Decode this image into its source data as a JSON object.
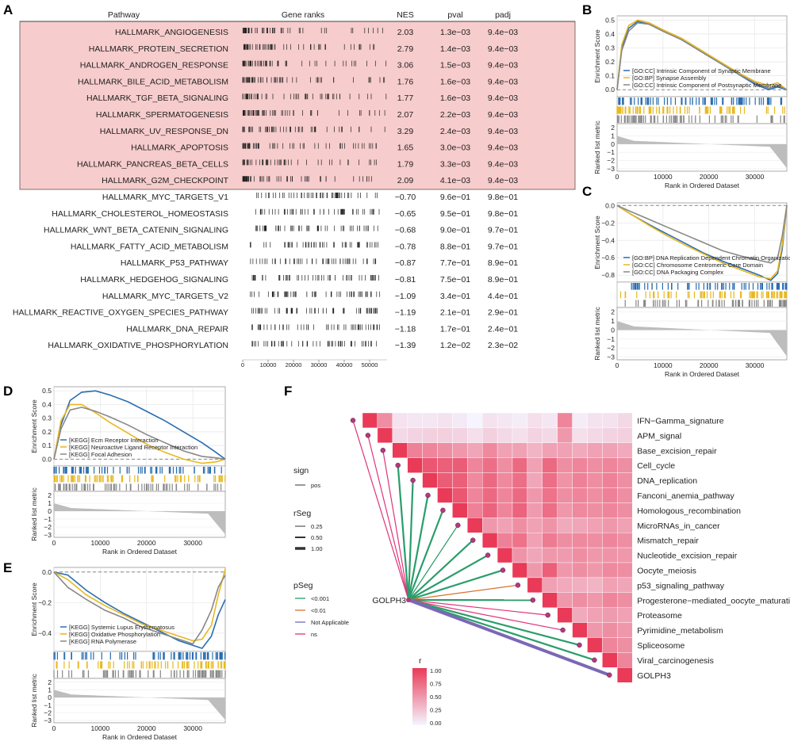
{
  "panels": {
    "a": "A",
    "b": "B",
    "c": "C",
    "d": "D",
    "e": "E",
    "f": "F"
  },
  "table": {
    "headers": [
      "Pathway",
      "Gene ranks",
      "NES",
      "pval",
      "padj"
    ],
    "rows": [
      {
        "pathway": "HALLMARK_ANGIOGENESIS",
        "nes": "2.03",
        "pval": "1.3e−03",
        "padj": "9.4e−03",
        "highlight": true
      },
      {
        "pathway": "HALLMARK_PROTEIN_SECRETION",
        "nes": "2.79",
        "pval": "1.4e−03",
        "padj": "9.4e−03",
        "highlight": true
      },
      {
        "pathway": "HALLMARK_ANDROGEN_RESPONSE",
        "nes": "3.06",
        "pval": "1.5e−03",
        "padj": "9.4e−03",
        "highlight": true
      },
      {
        "pathway": "HALLMARK_BILE_ACID_METABOLISM",
        "nes": "1.76",
        "pval": "1.6e−03",
        "padj": "9.4e−03",
        "highlight": true
      },
      {
        "pathway": "HALLMARK_TGF_BETA_SIGNALING",
        "nes": "1.77",
        "pval": "1.6e−03",
        "padj": "9.4e−03",
        "highlight": true
      },
      {
        "pathway": "HALLMARK_SPERMATOGENESIS",
        "nes": "2.07",
        "pval": "2.2e−03",
        "padj": "9.4e−03",
        "highlight": true
      },
      {
        "pathway": "HALLMARK_UV_RESPONSE_DN",
        "nes": "3.29",
        "pval": "2.4e−03",
        "padj": "9.4e−03",
        "highlight": true
      },
      {
        "pathway": "HALLMARK_APOPTOSIS",
        "nes": "1.65",
        "pval": "3.0e−03",
        "padj": "9.4e−03",
        "highlight": true
      },
      {
        "pathway": "HALLMARK_PANCREAS_BETA_CELLS",
        "nes": "1.79",
        "pval": "3.3e−03",
        "padj": "9.4e−03",
        "highlight": true
      },
      {
        "pathway": "HALLMARK_G2M_CHECKPOINT",
        "nes": "2.09",
        "pval": "4.1e−03",
        "padj": "9.4e−03",
        "highlight": true
      },
      {
        "pathway": "HALLMARK_MYC_TARGETS_V1",
        "nes": "−0.70",
        "pval": "9.6e−01",
        "padj": "9.8e−01",
        "highlight": false
      },
      {
        "pathway": "HALLMARK_CHOLESTEROL_HOMEOSTASIS",
        "nes": "−0.65",
        "pval": "9.5e−01",
        "padj": "9.8e−01",
        "highlight": false
      },
      {
        "pathway": "HALLMARK_WNT_BETA_CATENIN_SIGNALING",
        "nes": "−0.68",
        "pval": "9.0e−01",
        "padj": "9.7e−01",
        "highlight": false
      },
      {
        "pathway": "HALLMARK_FATTY_ACID_METABOLISM",
        "nes": "−0.78",
        "pval": "8.8e−01",
        "padj": "9.7e−01",
        "highlight": false
      },
      {
        "pathway": "HALLMARK_P53_PATHWAY",
        "nes": "−0.87",
        "pval": "7.7e−01",
        "padj": "8.9e−01",
        "highlight": false
      },
      {
        "pathway": "HALLMARK_HEDGEHOG_SIGNALING",
        "nes": "−0.81",
        "pval": "7.5e−01",
        "padj": "8.9e−01",
        "highlight": false
      },
      {
        "pathway": "HALLMARK_MYC_TARGETS_V2",
        "nes": "−1.09",
        "pval": "3.4e−01",
        "padj": "4.4e−01",
        "highlight": false
      },
      {
        "pathway": "HALLMARK_REACTIVE_OXYGEN_SPECIES_PATHWAY",
        "nes": "−1.19",
        "pval": "2.1e−01",
        "padj": "2.9e−01",
        "highlight": false
      },
      {
        "pathway": "HALLMARK_DNA_REPAIR",
        "nes": "−1.18",
        "pval": "1.7e−01",
        "padj": "2.4e−01",
        "highlight": false
      },
      {
        "pathway": "HALLMARK_OXIDATIVE_PHOSPHORYLATION",
        "nes": "−1.39",
        "pval": "1.2e−02",
        "padj": "2.3e−02",
        "highlight": false
      }
    ],
    "rank_ticks": [
      "0",
      "10000",
      "20000",
      "30000",
      "40000",
      "50000"
    ],
    "highlight_color": "#f7cccc"
  },
  "gsea_common": {
    "ylabel": "Enrichment Score",
    "ylabel2": "Ranked list metric",
    "xlabel": "Rank in Ordered Dataset",
    "xticks": [
      "0",
      "10000",
      "20000",
      "30000"
    ]
  },
  "chart_data": [
    {
      "id": "B",
      "type": "line",
      "x_range": [
        0,
        37000
      ],
      "y_range": [
        -0.05,
        0.53
      ],
      "yticks": [
        "0.5",
        "0.4",
        "0.3",
        "0.2",
        "0.1",
        "0.0"
      ],
      "metric_ticks": [
        "2",
        "1",
        "0",
        "−1",
        "−2",
        "−3"
      ],
      "legend": [
        "[GO:CC] Intrinsic Component of Synaptic Membrane",
        "[GO:BP] Synapse Assembly",
        "[GO:CC] Intrinsic Component of Postsynaptic Membrane"
      ],
      "series": [
        {
          "name": "Intrinsic Component of Synaptic Membrane",
          "color": "#2a6db0",
          "x": [
            0,
            1000,
            2500,
            4500,
            7000,
            10000,
            14000,
            18000,
            22000,
            26000,
            30000,
            33000,
            35000,
            37000
          ],
          "y": [
            0,
            0.3,
            0.44,
            0.49,
            0.47,
            0.42,
            0.36,
            0.28,
            0.2,
            0.12,
            0.04,
            0.0,
            0.02,
            0
          ]
        },
        {
          "name": "Synapse Assembly",
          "color": "#e8b820",
          "x": [
            0,
            1000,
            2500,
            4500,
            7000,
            10000,
            14000,
            18000,
            22000,
            26000,
            30000,
            33000,
            35000,
            37000
          ],
          "y": [
            0,
            0.32,
            0.46,
            0.5,
            0.48,
            0.43,
            0.37,
            0.29,
            0.21,
            0.13,
            0.06,
            0.03,
            0.05,
            0
          ]
        },
        {
          "name": "Intrinsic Component of Postsynaptic Membrane",
          "color": "#888888",
          "x": [
            0,
            1000,
            2500,
            4500,
            7000,
            10000,
            14000,
            18000,
            22000,
            26000,
            30000,
            33000,
            35000,
            37000
          ],
          "y": [
            0,
            0.28,
            0.42,
            0.48,
            0.47,
            0.42,
            0.36,
            0.28,
            0.2,
            0.12,
            0.05,
            0.01,
            0.03,
            0
          ]
        }
      ]
    },
    {
      "id": "C",
      "type": "line",
      "x_range": [
        0,
        37000
      ],
      "y_range": [
        -0.88,
        0.03
      ],
      "yticks": [
        "0.0",
        "−0.2",
        "−0.4",
        "−0.6",
        "−0.8"
      ],
      "metric_ticks": [
        "2",
        "1",
        "0",
        "−1",
        "−2",
        "−3"
      ],
      "legend": [
        "[GO:BP] DNA Replication Dependent Chromatin Organization",
        "[GO:CC] Chromosome Centromeric Core Domain",
        "[GO:CC] DNA Packaging Complex"
      ],
      "series": [
        {
          "name": "DNA Replication Dependent Chromatin Organization",
          "color": "#2a6db0",
          "x": [
            0,
            3000,
            7000,
            11000,
            15000,
            19000,
            23000,
            27000,
            31000,
            33500,
            35000,
            36000,
            37000
          ],
          "y": [
            0,
            -0.1,
            -0.22,
            -0.33,
            -0.44,
            -0.55,
            -0.64,
            -0.72,
            -0.8,
            -0.86,
            -0.78,
            -0.5,
            0
          ]
        },
        {
          "name": "Chromosome Centromeric Core Domain",
          "color": "#e8b820",
          "x": [
            0,
            3000,
            7000,
            11000,
            15000,
            19000,
            23000,
            27000,
            31000,
            33500,
            35000,
            36000,
            37000
          ],
          "y": [
            0,
            -0.1,
            -0.23,
            -0.35,
            -0.46,
            -0.56,
            -0.66,
            -0.74,
            -0.82,
            -0.84,
            -0.75,
            -0.45,
            0
          ]
        },
        {
          "name": "DNA Packaging Complex",
          "color": "#888888",
          "x": [
            0,
            3000,
            7000,
            11000,
            15000,
            19000,
            23000,
            27000,
            31000,
            33500,
            35000,
            36000,
            37000
          ],
          "y": [
            0,
            -0.07,
            -0.16,
            -0.25,
            -0.34,
            -0.43,
            -0.52,
            -0.58,
            -0.63,
            -0.66,
            -0.6,
            -0.35,
            0
          ]
        }
      ]
    },
    {
      "id": "D",
      "type": "line",
      "x_range": [
        0,
        37000
      ],
      "y_range": [
        -0.05,
        0.53
      ],
      "yticks": [
        "0.5",
        "0.4",
        "0.3",
        "0.2",
        "0.1",
        "0.0"
      ],
      "metric_ticks": [
        "2",
        "1",
        "0",
        "−1",
        "−2",
        "−3"
      ],
      "legend": [
        "[KEGG] Ecm Receptor Interaction",
        "[KEGG] Neuroactive Ligand Receptor Interaction",
        "[KEGG] Focal Adhesion"
      ],
      "series": [
        {
          "name": "Ecm Receptor Interaction",
          "color": "#2a6db0",
          "x": [
            0,
            1500,
            3500,
            6000,
            9000,
            12000,
            16000,
            20000,
            24000,
            28000,
            32000,
            35000,
            37000
          ],
          "y": [
            0,
            0.25,
            0.43,
            0.49,
            0.5,
            0.47,
            0.42,
            0.35,
            0.28,
            0.2,
            0.12,
            0.05,
            0
          ]
        },
        {
          "name": "Neuroactive Ligand Receptor Interaction",
          "color": "#e8b820",
          "x": [
            0,
            1500,
            3500,
            6000,
            9000,
            12000,
            16000,
            20000,
            24000,
            28000,
            32000,
            35000,
            37000
          ],
          "y": [
            0,
            0.28,
            0.4,
            0.4,
            0.34,
            0.27,
            0.19,
            0.11,
            0.05,
            0.0,
            -0.03,
            -0.02,
            0
          ]
        },
        {
          "name": "Focal Adhesion",
          "color": "#888888",
          "x": [
            0,
            1500,
            3500,
            6000,
            9000,
            12000,
            16000,
            20000,
            24000,
            28000,
            32000,
            35000,
            37000
          ],
          "y": [
            0,
            0.22,
            0.36,
            0.38,
            0.35,
            0.31,
            0.25,
            0.18,
            0.12,
            0.06,
            0.02,
            0.01,
            0
          ]
        }
      ]
    },
    {
      "id": "E",
      "type": "line",
      "x_range": [
        0,
        37000
      ],
      "y_range": [
        -0.52,
        0.03
      ],
      "yticks": [
        "0.0",
        "−0.2",
        "−0.4"
      ],
      "metric_ticks": [
        "2",
        "1",
        "0",
        "−1",
        "−2",
        "−3"
      ],
      "legend": [
        "[KEGG] Systemic Lupus Erythematosus",
        "[KEGG] Oxidative Phosphorylation",
        "[KEGG] RNA Polymerase"
      ],
      "series": [
        {
          "name": "Systemic Lupus Erythematosus",
          "color": "#2a6db0",
          "x": [
            0,
            3000,
            7000,
            11000,
            15000,
            19000,
            23000,
            27000,
            30000,
            32000,
            34000,
            35500,
            37000
          ],
          "y": [
            0,
            -0.02,
            -0.12,
            -0.2,
            -0.27,
            -0.33,
            -0.39,
            -0.45,
            -0.48,
            -0.5,
            -0.42,
            -0.28,
            -0.18
          ]
        },
        {
          "name": "Oxidative Phosphorylation",
          "color": "#e8b820",
          "x": [
            0,
            3000,
            7000,
            11000,
            15000,
            19000,
            23000,
            27000,
            30000,
            32000,
            34000,
            35500,
            37000
          ],
          "y": [
            0,
            -0.05,
            -0.15,
            -0.22,
            -0.28,
            -0.34,
            -0.38,
            -0.42,
            -0.45,
            -0.44,
            -0.35,
            -0.15,
            0.02
          ]
        },
        {
          "name": "RNA Polymerase",
          "color": "#888888",
          "x": [
            0,
            3000,
            7000,
            11000,
            15000,
            19000,
            23000,
            27000,
            30000,
            32000,
            34000,
            35500,
            37000
          ],
          "y": [
            0,
            -0.1,
            -0.18,
            -0.25,
            -0.3,
            -0.36,
            -0.4,
            -0.44,
            -0.47,
            -0.38,
            -0.25,
            -0.1,
            -0.02
          ]
        }
      ]
    },
    {
      "id": "F",
      "type": "heatmap",
      "labels": [
        "IFN−Gamma_signature",
        "APM_signal",
        "Base_excision_repair",
        "Cell_cycle",
        "DNA_replication",
        "Fanconi_anemia_pathway",
        "Homologous_recombination",
        "MicroRNAs_in_cancer",
        "Mismatch_repair",
        "Nucleotide_excision_repair",
        "Oocyte_meiosis",
        "p53_signaling_pathway",
        "Progesterone−mediated_oocyte_maturation",
        "Proteasome",
        "Pyrimidine_metabolism",
        "Spliceosome",
        "Viral_carcinogenesis",
        "GOLPH3"
      ],
      "root_label": "GOLPH3",
      "link_pseg": [
        "ns",
        "ns",
        "ns",
        "<0.001",
        "<0.001",
        "<0.001",
        "<0.001",
        "<0.001",
        "<0.001",
        "<0.001",
        "<0.001",
        "<0.01",
        "<0.001",
        "ns",
        "ns",
        "<0.001",
        "<0.001",
        "Not Applicable"
      ],
      "link_rseg": [
        0.25,
        0.25,
        0.25,
        0.5,
        0.5,
        0.5,
        0.5,
        0.25,
        0.5,
        0.5,
        0.5,
        0.25,
        0.5,
        0.25,
        0.25,
        0.5,
        0.5,
        1.0
      ],
      "legend_sign": {
        "title": "sign",
        "items": [
          "pos"
        ]
      },
      "legend_rseg": {
        "title": "rSeg",
        "items": [
          "0.25",
          "0.50",
          "1.00"
        ]
      },
      "legend_pseg": {
        "title": "pSeg",
        "items": [
          "<0.001",
          "<0.01",
          "Not Applicable",
          "ns"
        ],
        "colors": [
          "#2a9d6a",
          "#d9722b",
          "#7b68b5",
          "#e0337a"
        ]
      },
      "colorbar": {
        "title": "r",
        "ticks": [
          "1.00",
          "0.75",
          "0.50",
          "0.25",
          "0.00"
        ],
        "range": [
          0,
          1
        ]
      },
      "r_values": [
        [
          1.0
        ],
        [
          0.55,
          1.0
        ],
        [
          0.1,
          0.15,
          1.0
        ],
        [
          0.08,
          0.18,
          0.62,
          1.0
        ],
        [
          0.08,
          0.2,
          0.6,
          0.85,
          1.0
        ],
        [
          0.1,
          0.2,
          0.55,
          0.8,
          0.82,
          1.0
        ],
        [
          0.06,
          0.18,
          0.5,
          0.82,
          0.8,
          0.85,
          1.0
        ],
        [
          0.0,
          0.12,
          0.42,
          0.6,
          0.58,
          0.6,
          0.62,
          1.0
        ],
        [
          0.1,
          0.2,
          0.58,
          0.72,
          0.75,
          0.75,
          0.78,
          0.5,
          1.0
        ],
        [
          0.08,
          0.15,
          0.45,
          0.55,
          0.58,
          0.6,
          0.6,
          0.45,
          0.62,
          1.0
        ],
        [
          0.05,
          0.12,
          0.45,
          0.75,
          0.72,
          0.75,
          0.78,
          0.55,
          0.7,
          0.52,
          1.0
        ],
        [
          0.12,
          0.18,
          0.35,
          0.45,
          0.42,
          0.5,
          0.48,
          0.45,
          0.45,
          0.42,
          0.5,
          1.0
        ],
        [
          0.08,
          0.15,
          0.45,
          0.75,
          0.72,
          0.7,
          0.72,
          0.52,
          0.65,
          0.5,
          0.8,
          0.45,
          1.0
        ],
        [
          0.6,
          0.5,
          0.45,
          0.55,
          0.52,
          0.55,
          0.5,
          0.4,
          0.55,
          0.48,
          0.5,
          0.4,
          0.5,
          1.0
        ],
        [
          0.05,
          0.12,
          0.4,
          0.6,
          0.62,
          0.6,
          0.58,
          0.42,
          0.58,
          0.55,
          0.55,
          0.38,
          0.55,
          0.4,
          1.0
        ],
        [
          0.1,
          0.15,
          0.45,
          0.55,
          0.55,
          0.55,
          0.55,
          0.45,
          0.55,
          0.5,
          0.5,
          0.35,
          0.5,
          0.45,
          0.5,
          1.0
        ],
        [
          0.1,
          0.18,
          0.45,
          0.6,
          0.62,
          0.62,
          0.6,
          0.5,
          0.6,
          0.52,
          0.58,
          0.45,
          0.6,
          0.48,
          0.55,
          0.6,
          1.0
        ],
        [
          0.15,
          0.2,
          0.4,
          0.55,
          0.55,
          0.55,
          0.55,
          0.45,
          0.55,
          0.5,
          0.55,
          0.42,
          0.55,
          0.45,
          0.5,
          0.55,
          0.6,
          1.0
        ]
      ]
    }
  ]
}
